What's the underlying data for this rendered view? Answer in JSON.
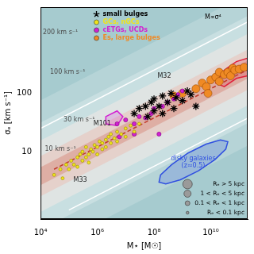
{
  "chart_data": {
    "type": "scatter",
    "x_label": "M⋆ [M☉]",
    "y_label": "σₑ [km s⁻¹]",
    "log": true,
    "grid": false,
    "legend": "upper left",
    "xlim": [
      10000,
      200000000000
    ],
    "ylim": [
      0.7,
      3000
    ],
    "xticks": [
      {
        "value": 10000,
        "label": "10⁴"
      },
      {
        "value": 1000000,
        "label": "10⁶"
      },
      {
        "value": 100000000,
        "label": "10⁸"
      },
      {
        "value": 10000000000,
        "label": "10¹⁰"
      }
    ],
    "yticks": [
      10,
      100
    ],
    "series": [
      {
        "type": "line",
        "line_style": "solid",
        "color": "#ffffff",
        "x": [
          10000,
          200000000000
        ],
        "values": [
          25,
          1672
        ]
      },
      {
        "type": "line",
        "line_style": "solid",
        "color": "#ffffff",
        "x": [
          100000,
          200000000000
        ],
        "values": [
          1,
          37.6
        ]
      },
      {
        "type": "line",
        "line_style": "dashed",
        "color": "#c0392b",
        "x": [
          30000,
          200000000000
        ],
        "values": [
          5,
          254
        ]
      },
      {
        "name": "small bulges",
        "marker": "star",
        "color": "#000000",
        "x": [
          20000000,
          30000000,
          50000000,
          60000000,
          80000000,
          100000000,
          100000000,
          150000000,
          200000000,
          200000000,
          300000000,
          400000000,
          500000000,
          600000000,
          1000000000,
          1500000000,
          2000000000,
          3000000000
        ],
        "values": [
          45,
          55,
          60,
          40,
          70,
          50,
          80,
          60,
          90,
          45,
          70,
          100,
          55,
          85,
          75,
          110,
          95,
          60
        ]
      },
      {
        "name": "GCs, nGCs",
        "marker": "circle",
        "color": "#f0e41c",
        "x": [
          30000,
          50000,
          60000,
          80000,
          100000,
          120000,
          150000,
          200000,
          200000,
          250000,
          300000,
          300000,
          400000,
          400000,
          500000,
          500000,
          600000,
          700000,
          800000,
          1000000,
          1000000,
          1200000,
          1500000,
          1500000,
          2000000,
          2000000,
          2500000,
          3000000,
          3000000,
          4000000,
          5000000,
          5000000,
          7000000,
          10000000,
          10000000,
          15000000,
          20000000,
          30000000
        ],
        "values": [
          4,
          5,
          3.5,
          6,
          5,
          7,
          6,
          8,
          5.5,
          9,
          7,
          10,
          8,
          12,
          9,
          6.5,
          11,
          10,
          13,
          12,
          9,
          15,
          11,
          14,
          16,
          12,
          18,
          14,
          20,
          17,
          22,
          15,
          20,
          25,
          18,
          28,
          22,
          30
        ]
      },
      {
        "name": "cETGs, UCDs",
        "marker": "circle",
        "color": "#d21fd2",
        "x": [
          5000000,
          6000000,
          10000000,
          20000000,
          20000000,
          30000000,
          50000000,
          80000000,
          100000000,
          150000000,
          200000000,
          300000000,
          500000000,
          700000000,
          1000000000
        ],
        "values": [
          30,
          18,
          35,
          30,
          20,
          40,
          38,
          45,
          55,
          20,
          60,
          70,
          80,
          95,
          110
        ]
      },
      {
        "name": "Es, large bulges",
        "marker": "circle",
        "color": "#f08a24",
        "x": [
          500000000,
          1000000000,
          3000000000,
          5000000000,
          7000000000,
          8000000000,
          10000000000,
          15000000000,
          20000000000,
          20000000000,
          30000000000,
          40000000000,
          50000000000,
          60000000000,
          70000000000,
          100000000000,
          150000000000
        ],
        "values": [
          90,
          100,
          120,
          150,
          130,
          100,
          170,
          190,
          160,
          230,
          210,
          230,
          200,
          270,
          250,
          260,
          280
        ]
      }
    ],
    "regions": [
      {
        "label": [
          "disky galaxies",
          "(z≈0.5)"
        ],
        "color": "#2f4fe0",
        "x": [
          40000000000,
          34000000000,
          14000000000,
          3700000000,
          850000000,
          260000000,
          150000000,
          170000000,
          420000000,
          1600000000,
          6900000000,
          22000000000
        ],
        "values": [
          14.8,
          11.1,
          7.3,
          4.7,
          3.3,
          2.8,
          3.0,
          4.0,
          6.0,
          9.5,
          13.5,
          15.9
        ]
      },
      {
        "color": "#e0203a",
        "x": [
          15000000000,
          30000000000,
          80000000000,
          200000000000,
          200000000000,
          80000000000,
          30000000000
        ],
        "values": [
          150,
          250,
          350,
          400,
          200,
          180,
          130
        ]
      },
      {
        "color": "#d21fd2",
        "x": [
          2000000,
          5000000,
          8000000,
          5000000,
          2000000
        ],
        "values": [
          40,
          50,
          40,
          28,
          30
        ]
      }
    ],
    "annotations": [
      {
        "text": "M∝σ⁴",
        "x": 12000000000,
        "y": 2000,
        "color": "#000000"
      },
      {
        "text": "200 km s⁻¹",
        "x": 50000,
        "y": 1100,
        "color": "#4a4a4a"
      },
      {
        "text": "100 km s⁻¹",
        "x": 90000,
        "y": 230,
        "color": "#4a4a4a"
      },
      {
        "text": "30 km s⁻¹",
        "x": 230000,
        "y": 35,
        "color": "#4a4a4a"
      },
      {
        "text": "10 km s⁻¹",
        "x": 50000,
        "y": 11,
        "color": "#4a4a4a"
      },
      {
        "text": "M32",
        "x": 230000000,
        "y": 200,
        "color": "#222222"
      },
      {
        "text": "M101",
        "x": 1500000,
        "y": 30,
        "color": "#222222"
      },
      {
        "text": "M33",
        "x": 250000,
        "y": 3.3,
        "color": "#222222"
      }
    ],
    "size_legend": [
      "Rₑ > 5 kpc",
      "1 < Rₑ < 5 kpc",
      "0.1 < Rₑ < 1 kpc",
      "Rₑ < 0.1 kpc"
    ]
  }
}
